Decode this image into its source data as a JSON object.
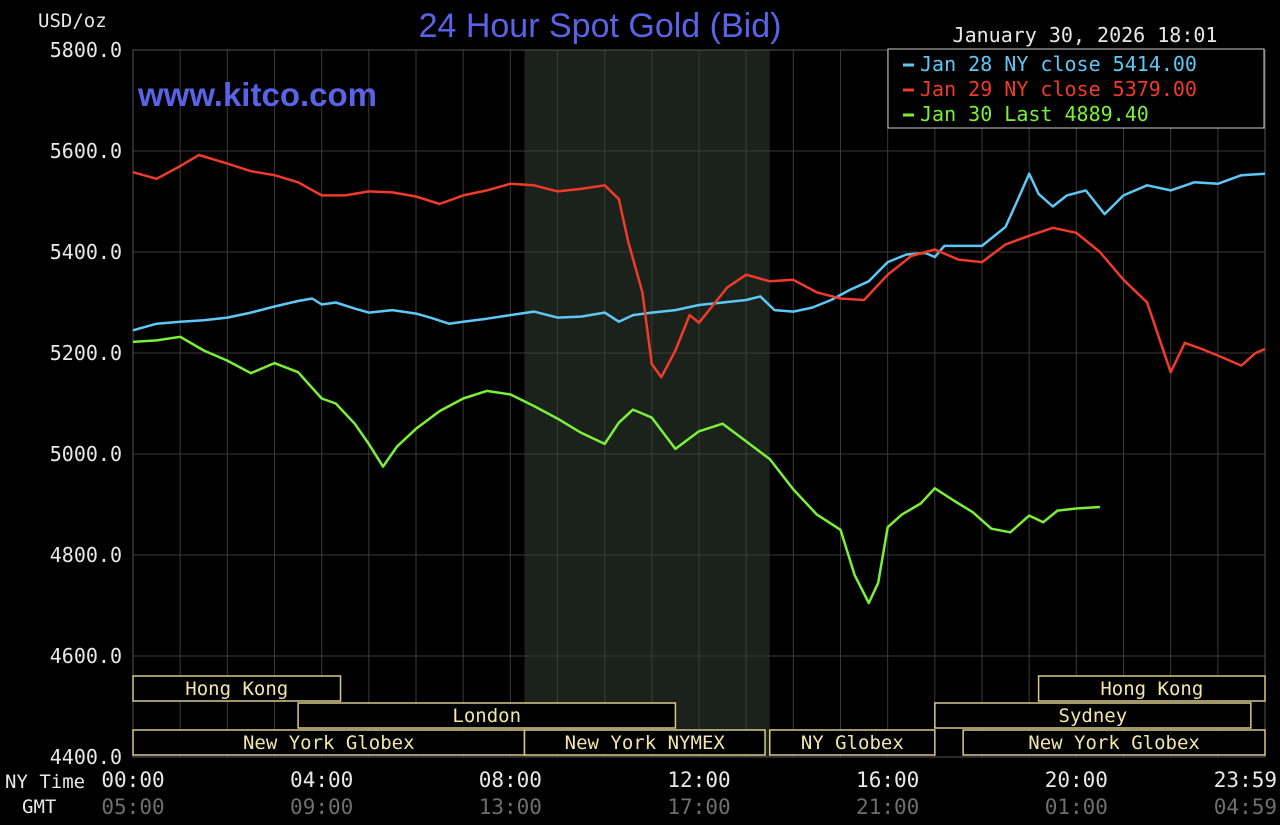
{
  "chart_data": {
    "type": "line",
    "title": "24 Hour Spot Gold (Bid)",
    "ylabel": "USD/oz",
    "watermark": "www.kitco.com",
    "timestamp": "January 30, 2026 18:01",
    "ylim": [
      4400,
      5800
    ],
    "y_ticks": [
      "5800.0",
      "5600.0",
      "5400.0",
      "5200.0",
      "5000.0",
      "4800.0",
      "4600.0",
      "4400.0"
    ],
    "x_unit": "hours (NY time)",
    "xlim": [
      0,
      24
    ],
    "ny_time_label": "NY Time",
    "gmt_label": "GMT",
    "x_ticks_ny": [
      {
        "h": 0,
        "label": "00:00"
      },
      {
        "h": 4,
        "label": "04:00"
      },
      {
        "h": 8,
        "label": "08:00"
      },
      {
        "h": 12,
        "label": "12:00"
      },
      {
        "h": 16,
        "label": "16:00"
      },
      {
        "h": 20,
        "label": "20:00"
      },
      {
        "h": 24,
        "label": "23:59"
      }
    ],
    "x_ticks_gmt": [
      "05:00",
      "09:00",
      "13:00",
      "17:00",
      "21:00",
      "01:00",
      "04:59"
    ],
    "grid": true,
    "shaded_region": [
      8.3,
      13.5
    ],
    "legend": {
      "placement": "top-right",
      "entries": [
        {
          "label": "Jan 28 NY close 5414.00",
          "color": "#5ec8f5"
        },
        {
          "label": "Jan 29 NY close 5379.00",
          "color": "#f03a2a"
        },
        {
          "label": "Jan 30 Last 4889.40",
          "color": "#7af03a"
        }
      ]
    },
    "series": [
      {
        "color": "#5ec8f5",
        "points": [
          [
            0,
            5245
          ],
          [
            0.5,
            5258
          ],
          [
            1,
            5262
          ],
          [
            1.5,
            5265
          ],
          [
            2,
            5270
          ],
          [
            2.5,
            5280
          ],
          [
            3,
            5292
          ],
          [
            3.5,
            5303
          ],
          [
            3.8,
            5308
          ],
          [
            4,
            5296
          ],
          [
            4.3,
            5300
          ],
          [
            4.7,
            5288
          ],
          [
            5,
            5280
          ],
          [
            5.5,
            5285
          ],
          [
            6,
            5278
          ],
          [
            6.3,
            5270
          ],
          [
            6.7,
            5258
          ],
          [
            7,
            5262
          ],
          [
            7.5,
            5268
          ],
          [
            8,
            5275
          ],
          [
            8.5,
            5282
          ],
          [
            9,
            5270
          ],
          [
            9.5,
            5272
          ],
          [
            10,
            5280
          ],
          [
            10.3,
            5262
          ],
          [
            10.6,
            5275
          ],
          [
            11,
            5280
          ],
          [
            11.5,
            5285
          ],
          [
            12,
            5295
          ],
          [
            12.5,
            5300
          ],
          [
            13,
            5305
          ],
          [
            13.3,
            5312
          ],
          [
            13.6,
            5285
          ],
          [
            14,
            5282
          ],
          [
            14.4,
            5290
          ],
          [
            14.8,
            5305
          ],
          [
            15.2,
            5325
          ],
          [
            15.6,
            5342
          ],
          [
            16,
            5380
          ],
          [
            16.4,
            5395
          ],
          [
            16.8,
            5398
          ],
          [
            17,
            5390
          ],
          [
            17.2,
            5412
          ],
          [
            18,
            5412
          ],
          [
            18.5,
            5450
          ],
          [
            18.8,
            5512
          ],
          [
            19,
            5555
          ],
          [
            19.2,
            5515
          ],
          [
            19.5,
            5490
          ],
          [
            19.8,
            5512
          ],
          [
            20.2,
            5522
          ],
          [
            20.6,
            5475
          ],
          [
            21,
            5512
          ],
          [
            21.5,
            5532
          ],
          [
            22,
            5522
          ],
          [
            22.5,
            5538
          ],
          [
            23,
            5535
          ],
          [
            23.5,
            5552
          ],
          [
            24,
            5555
          ]
        ]
      },
      {
        "color": "#f03a2a",
        "points": [
          [
            0,
            5558
          ],
          [
            0.5,
            5545
          ],
          [
            1,
            5570
          ],
          [
            1.4,
            5592
          ],
          [
            2,
            5575
          ],
          [
            2.5,
            5560
          ],
          [
            3,
            5552
          ],
          [
            3.5,
            5538
          ],
          [
            4,
            5512
          ],
          [
            4.5,
            5512
          ],
          [
            5,
            5520
          ],
          [
            5.5,
            5518
          ],
          [
            6,
            5510
          ],
          [
            6.5,
            5495
          ],
          [
            7,
            5512
          ],
          [
            7.5,
            5522
          ],
          [
            8,
            5535
          ],
          [
            8.5,
            5532
          ],
          [
            9,
            5520
          ],
          [
            9.5,
            5525
          ],
          [
            10,
            5532
          ],
          [
            10.3,
            5505
          ],
          [
            10.5,
            5420
          ],
          [
            10.8,
            5320
          ],
          [
            11,
            5178
          ],
          [
            11.2,
            5152
          ],
          [
            11.5,
            5205
          ],
          [
            11.8,
            5275
          ],
          [
            12,
            5260
          ],
          [
            12.3,
            5295
          ],
          [
            12.6,
            5330
          ],
          [
            13,
            5355
          ],
          [
            13.5,
            5342
          ],
          [
            14,
            5345
          ],
          [
            14.5,
            5320
          ],
          [
            15,
            5308
          ],
          [
            15.5,
            5305
          ],
          [
            16,
            5355
          ],
          [
            16.5,
            5392
          ],
          [
            17,
            5405
          ],
          [
            17.5,
            5385
          ],
          [
            18,
            5380
          ],
          [
            18.5,
            5415
          ],
          [
            19,
            5432
          ],
          [
            19.5,
            5448
          ],
          [
            20,
            5438
          ],
          [
            20.5,
            5400
          ],
          [
            21,
            5345
          ],
          [
            21.5,
            5300
          ],
          [
            22,
            5162
          ],
          [
            22.3,
            5220
          ],
          [
            22.6,
            5210
          ],
          [
            23,
            5195
          ],
          [
            23.5,
            5175
          ],
          [
            23.8,
            5200
          ],
          [
            24,
            5208
          ]
        ]
      },
      {
        "color": "#7af03a",
        "points": [
          [
            0,
            5222
          ],
          [
            0.5,
            5225
          ],
          [
            1,
            5232
          ],
          [
            1.5,
            5205
          ],
          [
            2,
            5185
          ],
          [
            2.5,
            5160
          ],
          [
            3,
            5180
          ],
          [
            3.5,
            5162
          ],
          [
            4,
            5110
          ],
          [
            4.3,
            5100
          ],
          [
            4.7,
            5060
          ],
          [
            5,
            5020
          ],
          [
            5.3,
            4975
          ],
          [
            5.6,
            5015
          ],
          [
            6,
            5050
          ],
          [
            6.5,
            5085
          ],
          [
            7,
            5110
          ],
          [
            7.5,
            5125
          ],
          [
            8,
            5118
          ],
          [
            8.5,
            5095
          ],
          [
            9,
            5070
          ],
          [
            9.5,
            5042
          ],
          [
            10,
            5020
          ],
          [
            10.3,
            5062
          ],
          [
            10.6,
            5088
          ],
          [
            11,
            5072
          ],
          [
            11.5,
            5010
          ],
          [
            12,
            5045
          ],
          [
            12.5,
            5060
          ],
          [
            13,
            5025
          ],
          [
            13.5,
            4990
          ],
          [
            14,
            4930
          ],
          [
            14.5,
            4880
          ],
          [
            15,
            4850
          ],
          [
            15.3,
            4760
          ],
          [
            15.6,
            4705
          ],
          [
            15.8,
            4745
          ],
          [
            16,
            4855
          ],
          [
            16.3,
            4880
          ],
          [
            16.7,
            4902
          ],
          [
            17,
            4932
          ],
          [
            17.4,
            4908
          ],
          [
            17.8,
            4885
          ],
          [
            18.2,
            4852
          ],
          [
            18.6,
            4845
          ],
          [
            19,
            4878
          ],
          [
            19.3,
            4865
          ],
          [
            19.6,
            4888
          ],
          [
            20,
            4892
          ],
          [
            20.5,
            4895
          ]
        ]
      }
    ],
    "sessions": [
      {
        "label": "Hong Kong",
        "start": 0,
        "end": 4.4
      },
      {
        "label": "London",
        "start": 3.5,
        "end": 11.5
      },
      {
        "label": "New York Globex",
        "start": 0,
        "end": 8.3
      },
      {
        "label": "New York NYMEX",
        "start": 8.3,
        "end": 13.4
      },
      {
        "label": "NY Globex",
        "start": 13.5,
        "end": 17
      },
      {
        "label": "Sydney",
        "start": 17,
        "end": 23.7
      },
      {
        "label": "Hong Kong",
        "start": 19.2,
        "end": 24
      },
      {
        "label": "New York Globex",
        "start": 17.6,
        "end": 24
      }
    ]
  }
}
